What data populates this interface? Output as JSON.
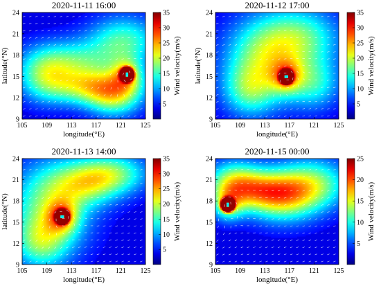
{
  "figure": {
    "description_type": "wind field maps",
    "field_colormap": "jet"
  },
  "chart_data": [
    {
      "type": "heatmap",
      "title": "2020-11-11 16:00",
      "xlabel": "longitude(°E)",
      "ylabel": "latitude(°N)",
      "colorbar_label": "Wind velocity(m/s)",
      "xlim": [
        105,
        125
      ],
      "ylim": [
        9,
        24
      ],
      "xticks": [
        "105",
        "109",
        "113",
        "117",
        "121",
        "125"
      ],
      "yticks": [
        "9",
        "12",
        "15",
        "18",
        "21",
        "24"
      ],
      "colorbar_range": [
        0,
        35
      ],
      "colorbar_ticks": [
        "5",
        "10",
        "15",
        "20",
        "25",
        "30",
        "35"
      ],
      "show_xlabel": true,
      "show_ylabel": true,
      "typhoon_center": [
        122.0,
        15.3
      ],
      "plume": [
        [
          116.5,
          13.5,
          5.0,
          1.8,
          0.95
        ],
        [
          113.0,
          17.0,
          5.0,
          2.2,
          0.7
        ],
        [
          121.5,
          20.0,
          4.0,
          2.5,
          0.75
        ],
        [
          108.5,
          15.0,
          3.0,
          2.5,
          0.6
        ],
        [
          120.0,
          12.0,
          3.0,
          2.0,
          0.7
        ]
      ]
    },
    {
      "type": "heatmap",
      "title": "2020-11-12 17:00",
      "xlabel": "longitude(°E)",
      "ylabel": "latitude(°N)",
      "colorbar_label": "Wind velocity(m/s)",
      "xlim": [
        105,
        125
      ],
      "ylim": [
        9,
        24
      ],
      "xticks": [
        "105",
        "109",
        "113",
        "117",
        "121",
        "125"
      ],
      "yticks": [
        "9",
        "12",
        "15",
        "18",
        "21",
        "24"
      ],
      "colorbar_range": [
        0,
        35
      ],
      "colorbar_ticks": [
        "5",
        "10",
        "15",
        "20",
        "25",
        "30",
        "35"
      ],
      "show_xlabel": true,
      "show_ylabel": true,
      "typhoon_center": [
        116.5,
        15.0
      ],
      "plume": [
        [
          113.0,
          17.5,
          4.5,
          4.0,
          0.9
        ],
        [
          119.0,
          20.5,
          4.5,
          3.0,
          0.7
        ],
        [
          110.5,
          13.0,
          3.0,
          2.5,
          0.6
        ],
        [
          121.0,
          14.0,
          3.0,
          2.5,
          0.6
        ]
      ]
    },
    {
      "type": "heatmap",
      "title": "2020-11-13 14:00",
      "xlabel": "longitude(°E)",
      "ylabel": "latitude(°N)",
      "colorbar_label": "Wind velocity(m/s)",
      "xlim": [
        105,
        125
      ],
      "ylim": [
        9,
        24
      ],
      "xticks": [
        "105",
        "109",
        "113",
        "117",
        "121",
        "125"
      ],
      "yticks": [
        "9",
        "12",
        "15",
        "18",
        "21",
        "24"
      ],
      "colorbar_range": [
        0,
        35
      ],
      "colorbar_ticks": [
        "5",
        "10",
        "15",
        "20",
        "25",
        "30",
        "35"
      ],
      "show_xlabel": true,
      "show_ylabel": true,
      "typhoon_center": [
        111.5,
        15.8
      ],
      "plume": [
        [
          109.5,
          17.0,
          4.5,
          4.5,
          0.9
        ],
        [
          115.5,
          20.5,
          4.0,
          2.2,
          0.75
        ],
        [
          120.0,
          22.0,
          4.0,
          2.0,
          0.7
        ],
        [
          108.0,
          12.0,
          3.0,
          2.5,
          0.6
        ]
      ]
    },
    {
      "type": "heatmap",
      "title": "2020-11-15 00:00",
      "xlabel": "longitude(°E)",
      "ylabel": "",
      "colorbar_label": "Wind velocity(m/s)",
      "xlim": [
        105,
        125
      ],
      "ylim": [
        9,
        24
      ],
      "xticks": [
        "105",
        "109",
        "113",
        "117",
        "121",
        "125"
      ],
      "yticks": [
        "9",
        "12",
        "15",
        "18",
        "21",
        "24"
      ],
      "colorbar_range": [
        0,
        25
      ],
      "colorbar_ticks": [
        "5",
        "10",
        "15",
        "20",
        "25"
      ],
      "show_xlabel": true,
      "show_ylabel": false,
      "typhoon_center": [
        107.0,
        17.5
      ],
      "plume": [
        [
          111.5,
          19.5,
          4.5,
          2.0,
          0.9
        ],
        [
          116.0,
          18.5,
          4.0,
          2.5,
          0.85
        ],
        [
          121.0,
          20.5,
          4.0,
          2.5,
          0.8
        ],
        [
          108.0,
          21.0,
          3.0,
          2.0,
          0.7
        ]
      ]
    }
  ]
}
